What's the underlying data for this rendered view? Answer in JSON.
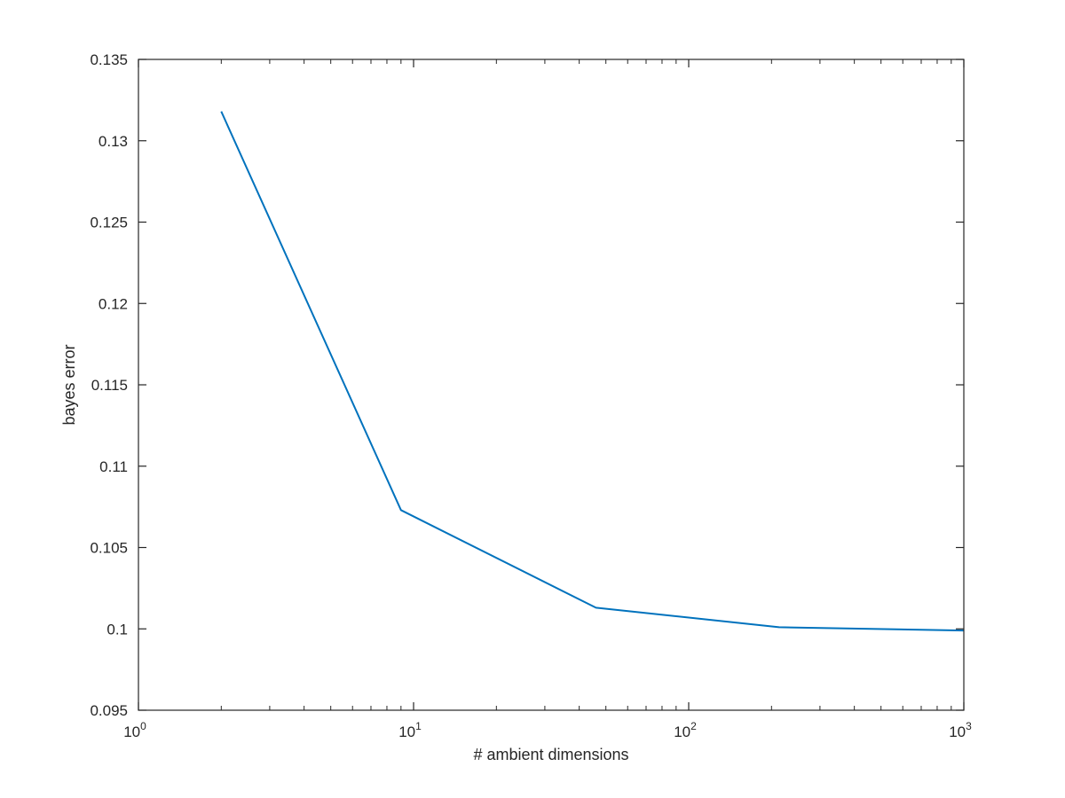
{
  "chart_data": {
    "type": "line",
    "title": "",
    "xlabel": "# ambient dimensions",
    "ylabel": "bayes error",
    "xscale": "log",
    "xlim": [
      1,
      1000
    ],
    "ylim": [
      0.095,
      0.135
    ],
    "x_ticks": [
      {
        "value": 1,
        "base": "10",
        "exp": "0"
      },
      {
        "value": 10,
        "base": "10",
        "exp": "1"
      },
      {
        "value": 100,
        "base": "10",
        "exp": "2"
      },
      {
        "value": 1000,
        "base": "10",
        "exp": "3"
      }
    ],
    "y_ticks": [
      {
        "value": 0.095,
        "label": "0.095"
      },
      {
        "value": 0.1,
        "label": "0.1"
      },
      {
        "value": 0.105,
        "label": "0.105"
      },
      {
        "value": 0.11,
        "label": "0.11"
      },
      {
        "value": 0.115,
        "label": "0.115"
      },
      {
        "value": 0.12,
        "label": "0.12"
      },
      {
        "value": 0.125,
        "label": "0.125"
      },
      {
        "value": 0.13,
        "label": "0.13"
      },
      {
        "value": 0.135,
        "label": "0.135"
      }
    ],
    "grid": false,
    "box": true,
    "series": [
      {
        "color": "#0072BD",
        "x": [
          2,
          9,
          46,
          213,
          1000
        ],
        "y": [
          0.1318,
          0.1073,
          0.1013,
          0.1001,
          0.0999
        ]
      }
    ]
  }
}
